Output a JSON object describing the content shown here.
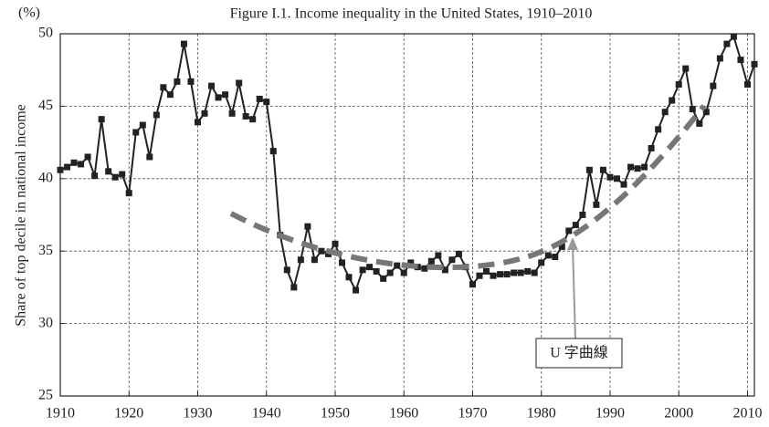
{
  "chart_data": {
    "type": "line",
    "title": "Figure I.1. Income inequality in the United States, 1910–2010",
    "y_unit": "(%)",
    "ylabel": "Share of top decile in national income",
    "annotation": "U 字曲線",
    "x": [
      1910,
      1911,
      1912,
      1913,
      1914,
      1915,
      1916,
      1917,
      1918,
      1919,
      1920,
      1921,
      1922,
      1923,
      1924,
      1925,
      1926,
      1927,
      1928,
      1929,
      1930,
      1931,
      1932,
      1933,
      1934,
      1935,
      1936,
      1937,
      1938,
      1939,
      1940,
      1941,
      1942,
      1943,
      1944,
      1945,
      1946,
      1947,
      1948,
      1949,
      1950,
      1951,
      1952,
      1953,
      1954,
      1955,
      1956,
      1957,
      1958,
      1959,
      1960,
      1961,
      1962,
      1963,
      1964,
      1965,
      1966,
      1967,
      1968,
      1969,
      1970,
      1971,
      1972,
      1973,
      1974,
      1975,
      1976,
      1977,
      1978,
      1979,
      1980,
      1981,
      1982,
      1983,
      1984,
      1985,
      1986,
      1987,
      1988,
      1989,
      1990,
      1991,
      1992,
      1993,
      1994,
      1995,
      1996,
      1997,
      1998,
      1999,
      2000,
      2001,
      2002,
      2003,
      2004,
      2005,
      2006,
      2007,
      2008,
      2009,
      2010,
      2011
    ],
    "values": [
      40.6,
      40.8,
      41.1,
      41.0,
      41.5,
      40.2,
      44.1,
      40.5,
      40.1,
      40.3,
      39.0,
      43.2,
      43.7,
      41.5,
      44.4,
      46.3,
      45.8,
      46.7,
      49.3,
      46.7,
      43.9,
      44.5,
      46.4,
      45.6,
      45.8,
      44.5,
      46.6,
      44.3,
      44.1,
      45.5,
      45.3,
      41.9,
      36.1,
      33.7,
      32.5,
      34.4,
      36.7,
      34.4,
      35.0,
      34.8,
      35.5,
      34.2,
      33.2,
      32.3,
      33.7,
      33.9,
      33.6,
      33.1,
      33.5,
      34.0,
      33.5,
      34.2,
      33.9,
      33.8,
      34.3,
      34.7,
      33.7,
      34.4,
      34.8,
      33.9,
      32.7,
      33.3,
      33.6,
      33.3,
      33.4,
      33.4,
      33.5,
      33.5,
      33.6,
      33.5,
      34.2,
      34.7,
      34.6,
      35.3,
      36.4,
      36.8,
      37.5,
      40.6,
      38.2,
      40.6,
      40.1,
      40.0,
      39.6,
      40.8,
      40.7,
      40.8,
      42.1,
      43.4,
      44.6,
      45.4,
      46.5,
      47.6,
      44.8,
      43.8,
      44.6,
      46.4,
      48.3,
      49.3,
      49.8,
      48.2,
      46.5,
      47.9
    ],
    "color": "#222222",
    "xlim": [
      1910,
      2011
    ],
    "xticks": [
      1910,
      1920,
      1930,
      1940,
      1950,
      1960,
      1970,
      1980,
      1990,
      2000,
      2010
    ],
    "ylim": [
      25,
      50
    ],
    "yticks": [
      25,
      30,
      35,
      40,
      45,
      50
    ],
    "grid": true
  }
}
